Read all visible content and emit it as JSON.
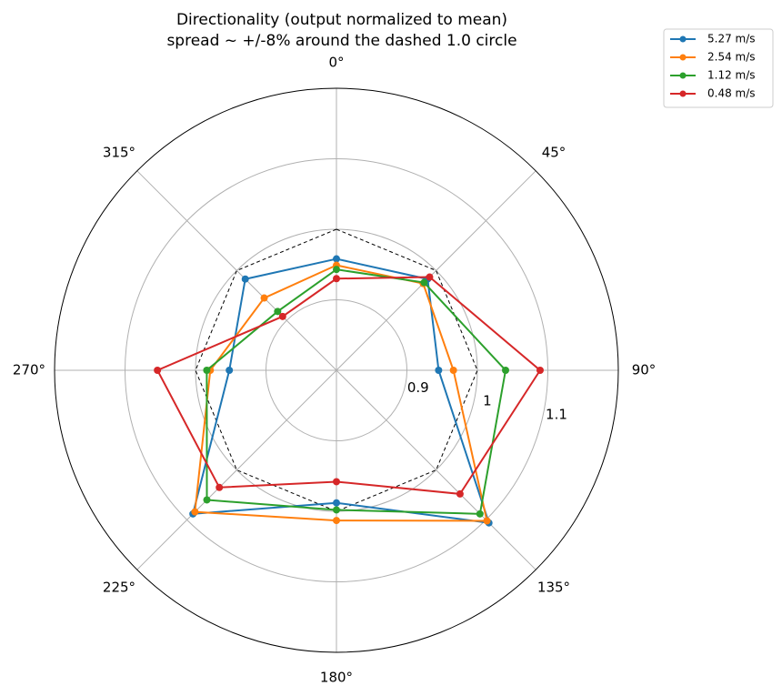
{
  "chart_data": {
    "type": "radar",
    "title": "Directionality (output normalized to mean)",
    "subtitle": "spread ~ +/-8% around the dashed 1.0 circle",
    "x": [
      0,
      45,
      90,
      135,
      180,
      225,
      270,
      315
    ],
    "xticks": [
      {
        "value": 0,
        "label": "0°"
      },
      {
        "value": 45,
        "label": "45°"
      },
      {
        "value": 90,
        "label": "90°"
      },
      {
        "value": 135,
        "label": "135°"
      },
      {
        "value": 180,
        "label": "180°"
      },
      {
        "value": 225,
        "label": "225°"
      },
      {
        "value": 270,
        "label": "270°"
      },
      {
        "value": 315,
        "label": "315°"
      }
    ],
    "ylim": [
      0.8,
      1.2
    ],
    "yticks": [
      0.9,
      1.0,
      1.1
    ],
    "reference_circle": 1.0,
    "grid": true,
    "legend": "upper right",
    "series": [
      {
        "name": "5.27 m/s",
        "color": "#1f77b4",
        "values": [
          0.958,
          0.983,
          0.945,
          1.106,
          0.988,
          1.088,
          0.952,
          0.983
        ]
      },
      {
        "name": "2.54 m/s",
        "color": "#ff7f0e",
        "values": [
          0.949,
          0.974,
          0.966,
          1.102,
          1.013,
          1.084,
          0.979,
          0.945
        ]
      },
      {
        "name": "1.12 m/s",
        "color": "#2ca02c",
        "values": [
          0.943,
          0.976,
          1.04,
          1.088,
          0.998,
          1.06,
          0.984,
          0.918
        ]
      },
      {
        "name": "0.48 m/s",
        "color": "#d62728",
        "values": [
          0.93,
          0.987,
          1.089,
          1.048,
          0.958,
          1.035,
          1.054,
          0.908
        ]
      }
    ]
  }
}
